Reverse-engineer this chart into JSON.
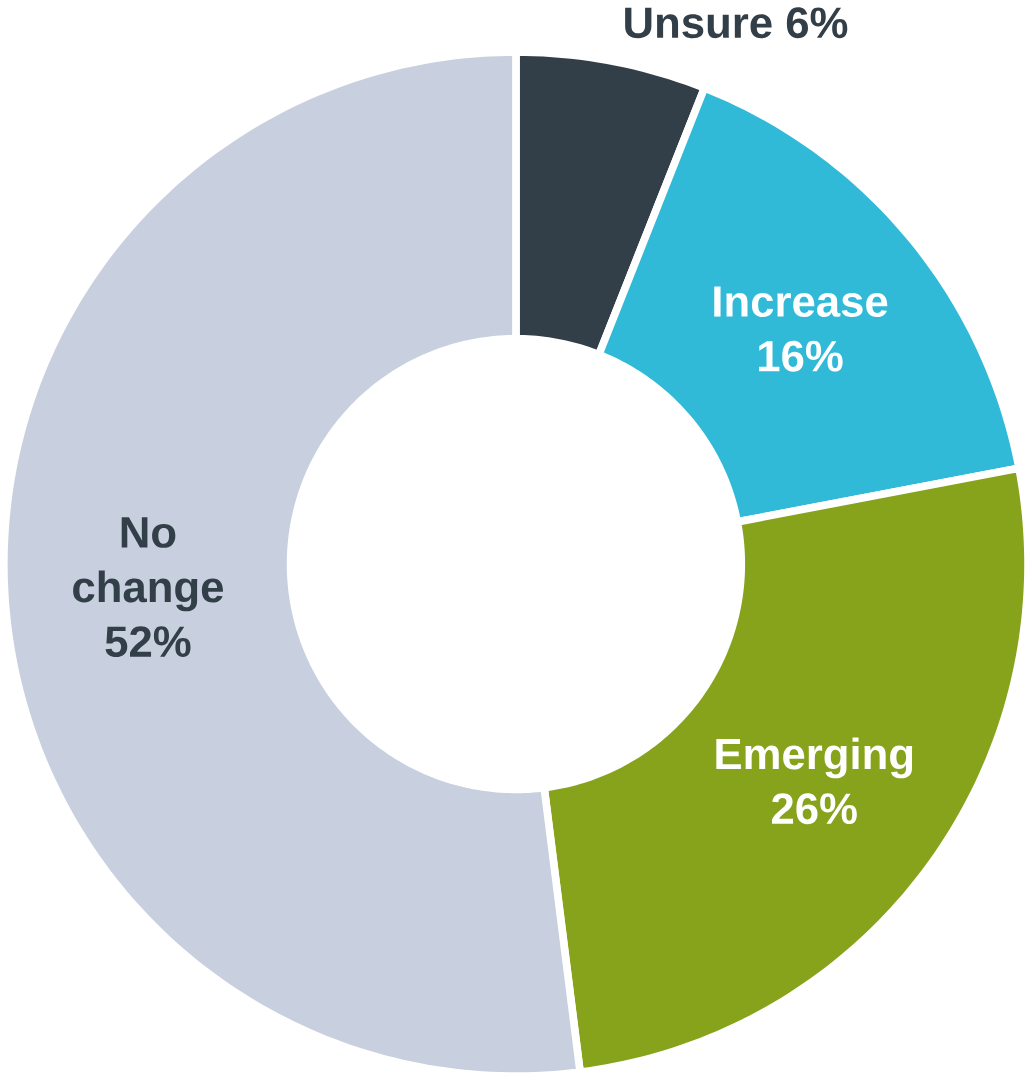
{
  "chart_data": {
    "type": "donut",
    "categories": [
      "Unsure",
      "Increase",
      "Emerging",
      "No change"
    ],
    "values": [
      6,
      16,
      26,
      52
    ],
    "value_labels": [
      "6%",
      "16%",
      "26%",
      "52%"
    ],
    "colors": [
      "#333f48",
      "#31b9d8",
      "#87a31c",
      "#c8d0e0"
    ]
  }
}
